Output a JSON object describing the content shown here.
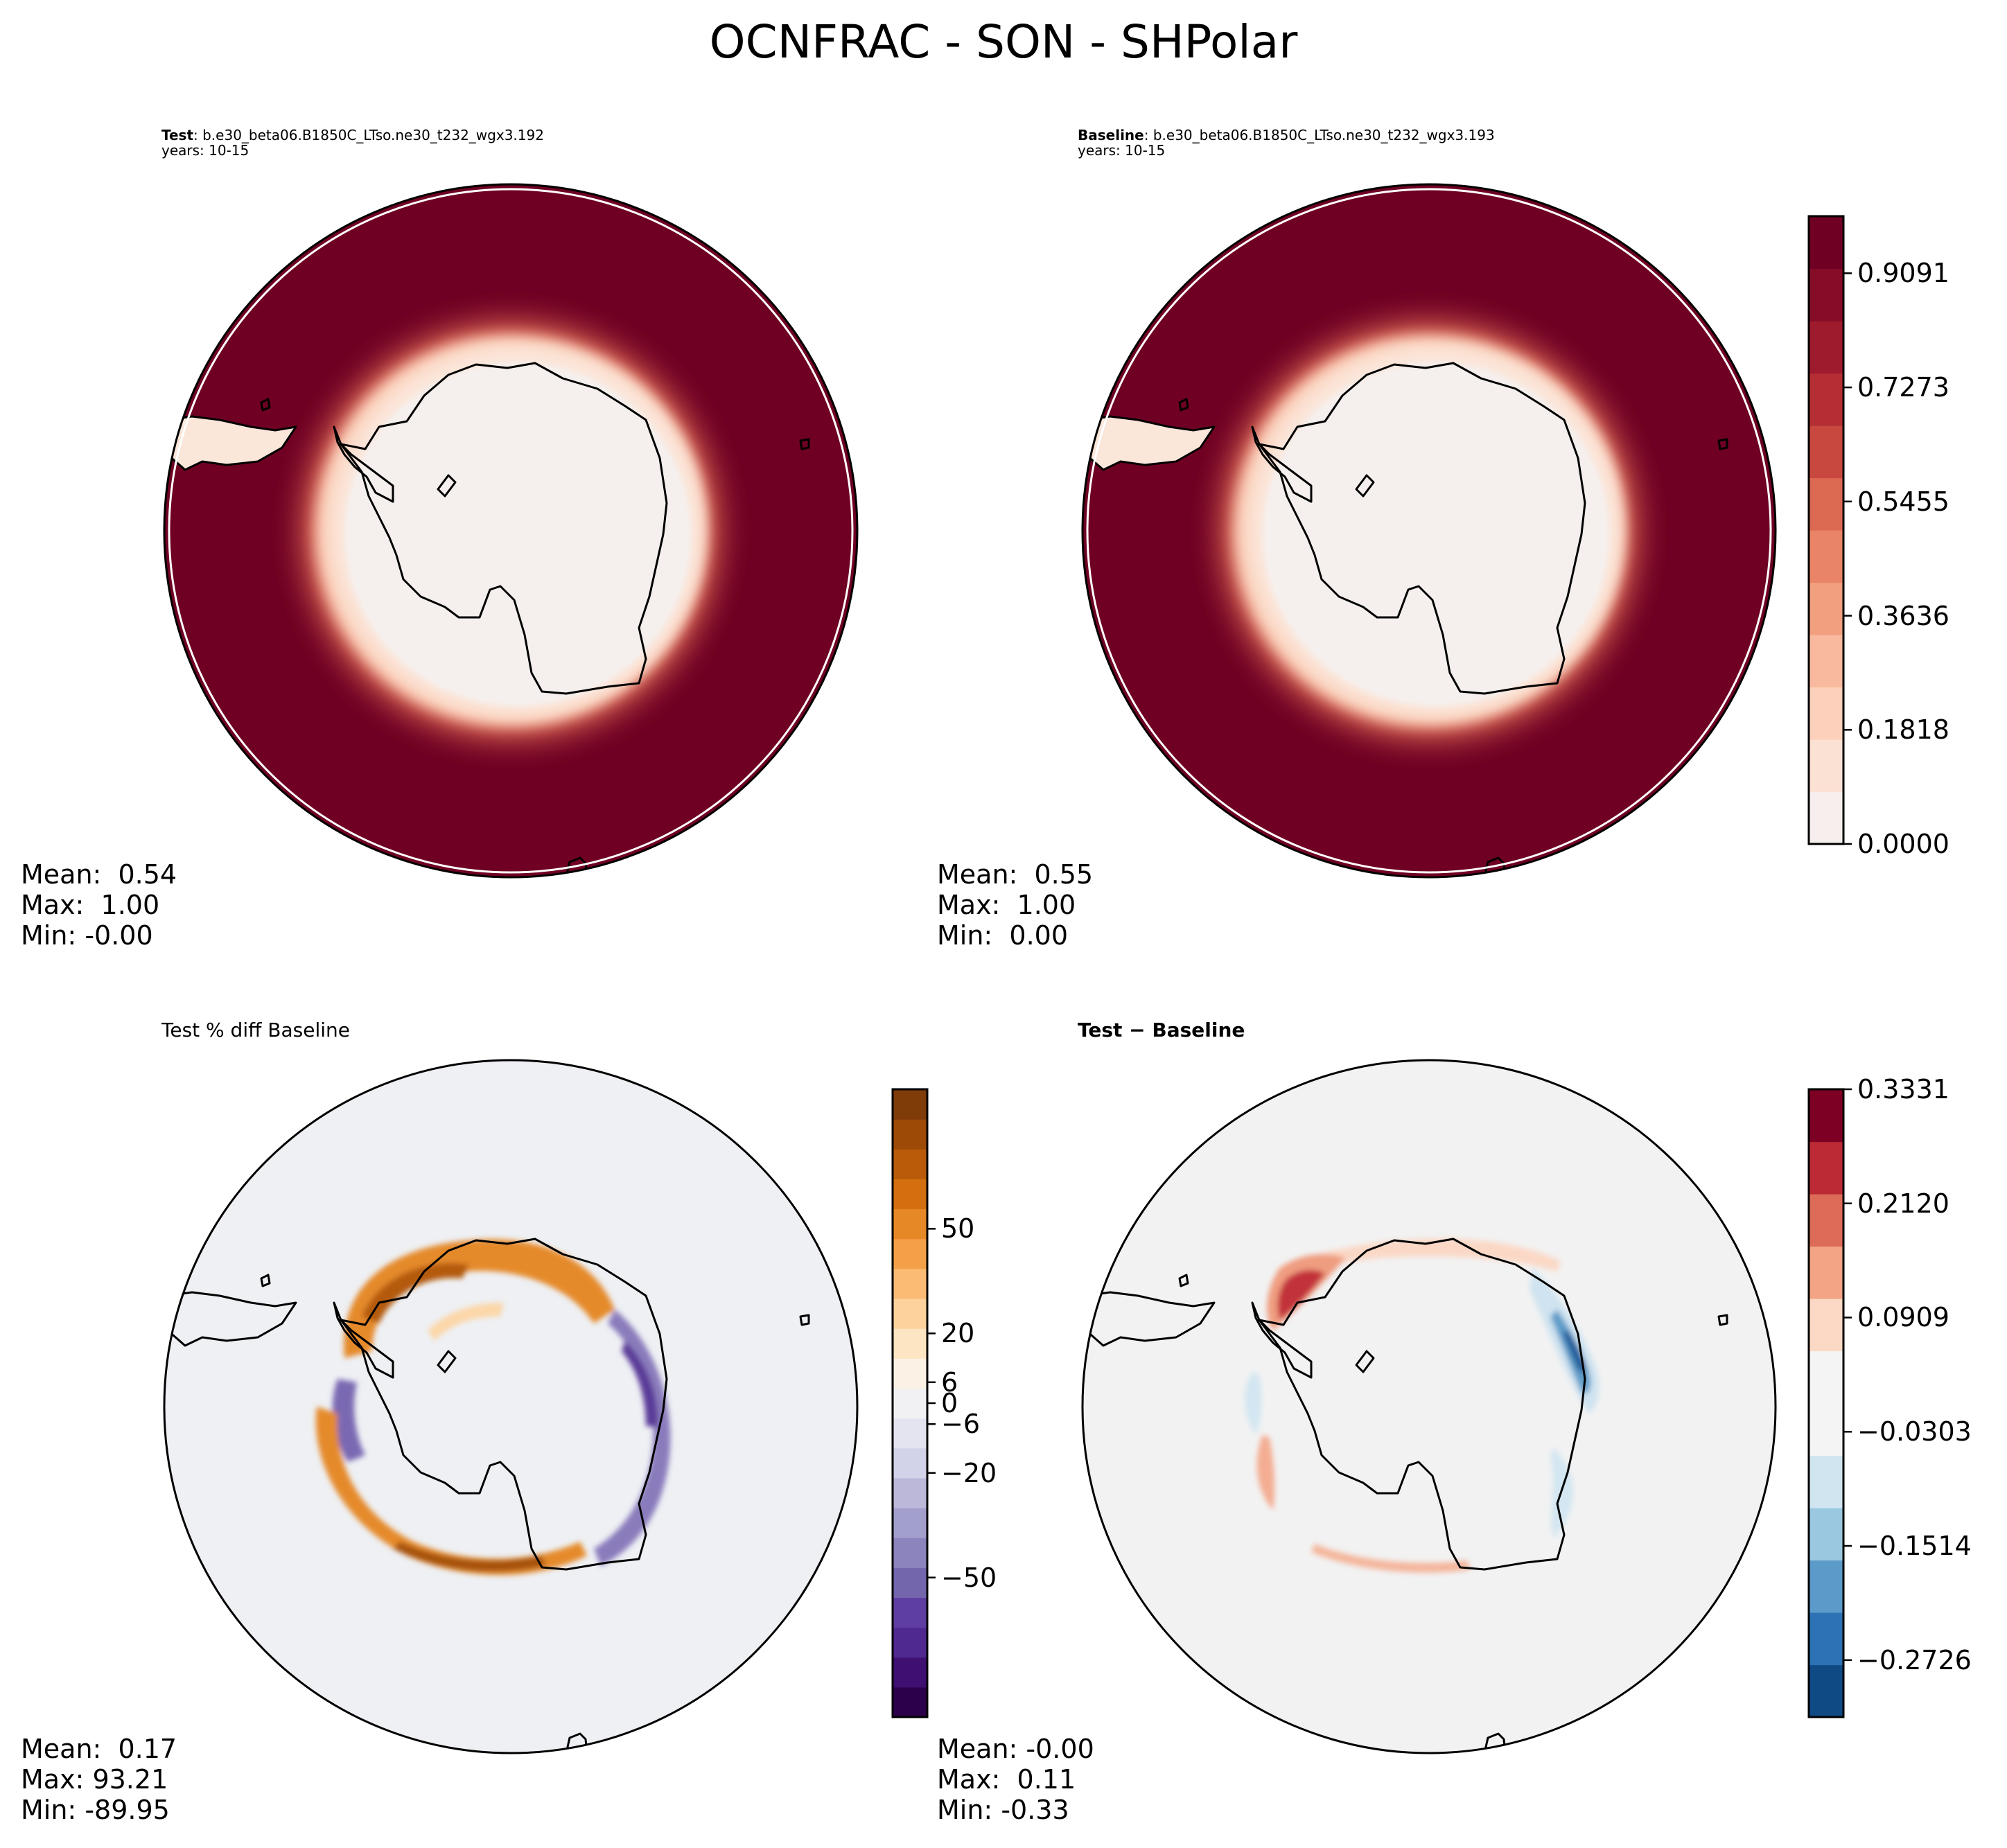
{
  "title": "OCNFRAC - SON - SHPolar",
  "colors": {
    "ocean_dark": "#6f0023",
    "ice_edge": "#f7dccb",
    "land_interior": "#f5f0ee",
    "diff_background": "#f2f2f2",
    "pct_background": "#eef0f4",
    "coastline": "#000000"
  },
  "chart_data": [
    {
      "type": "heatmap",
      "projection": "south-polar-stereographic",
      "title_bold": "Test",
      "title_rest": ": b.e30_beta06.B1850C_LTso.ne30_t232_wgx3.192",
      "subtitle": "years: 10-15",
      "stats": {
        "mean": "0.54",
        "max": "1.00",
        "min": "-0.00"
      },
      "colormap": "Reds"
    },
    {
      "type": "heatmap",
      "projection": "south-polar-stereographic",
      "title_bold": "Baseline",
      "title_rest": ": b.e30_beta06.B1850C_LTso.ne30_t232_wgx3.193",
      "subtitle": "years: 10-15",
      "stats": {
        "mean": "0.55",
        "max": "1.00",
        "min": "0.00"
      },
      "colormap": "Reds",
      "colorbar": {
        "vmin": 0.0,
        "vmax": 1.0,
        "levels": 12,
        "ticks": [
          "0.0000",
          "0.1818",
          "0.3636",
          "0.5455",
          "0.7273",
          "0.9091"
        ],
        "tick_values": [
          0.0,
          0.1818,
          0.3636,
          0.5455,
          0.7273,
          0.9091
        ],
        "colors": [
          "#f6efee",
          "#fbe1d4",
          "#fcd0bb",
          "#f9b99e",
          "#f29f80",
          "#e98566",
          "#dc6a52",
          "#c8473f",
          "#b52e34",
          "#9e1a2d",
          "#860d28",
          "#6f0023"
        ]
      }
    },
    {
      "type": "heatmap",
      "projection": "south-polar-stereographic",
      "title_plain": "Test % diff Baseline",
      "stats": {
        "mean": "0.17",
        "max": "93.21",
        "min": "-89.95"
      },
      "colormap": "PuOr_r",
      "colorbar": {
        "vmin": -90,
        "vmax": 90,
        "ticks": [
          "50",
          "20",
          "6",
          "0",
          "−6",
          "−20",
          "−50"
        ],
        "tick_values": [
          50,
          20,
          6,
          0,
          -6,
          -20,
          -50
        ],
        "colors": [
          "#2d004b",
          "#3f0f72",
          "#4f2890",
          "#5f3ea3",
          "#7366ad",
          "#8b84bd",
          "#a39fcc",
          "#bbb8da",
          "#d2d2e8",
          "#e4e4f0",
          "#f1f1f3",
          "#fbf1e4",
          "#fde4c3",
          "#fdd29c",
          "#fbbb74",
          "#f4a048",
          "#e78826",
          "#d36f0f",
          "#b95b08",
          "#9d4a07",
          "#7f3b08"
        ]
      }
    },
    {
      "type": "heatmap",
      "projection": "south-polar-stereographic",
      "title_bold": "Test − Baseline",
      "stats": {
        "mean": "-0.00",
        "max": "0.11",
        "min": "-0.33"
      },
      "colormap": "RdBu_r",
      "colorbar": {
        "vmin": -0.333,
        "vmax": 0.3331,
        "ticks": [
          "0.3331",
          "0.2120",
          "0.0909",
          "−0.0303",
          "−0.1514",
          "−0.2726"
        ],
        "tick_values": [
          0.3331,
          0.212,
          0.0909,
          -0.0303,
          -0.1514,
          -0.2726
        ],
        "colors": [
          "#0f4a84",
          "#2c72b4",
          "#5b9ac9",
          "#9ac8e0",
          "#d1e5f0",
          "#f4f4f4",
          "#f4f4f4",
          "#fcd9c4",
          "#f2a485",
          "#dc6b58",
          "#bb2a35",
          "#7d0024"
        ]
      }
    }
  ]
}
